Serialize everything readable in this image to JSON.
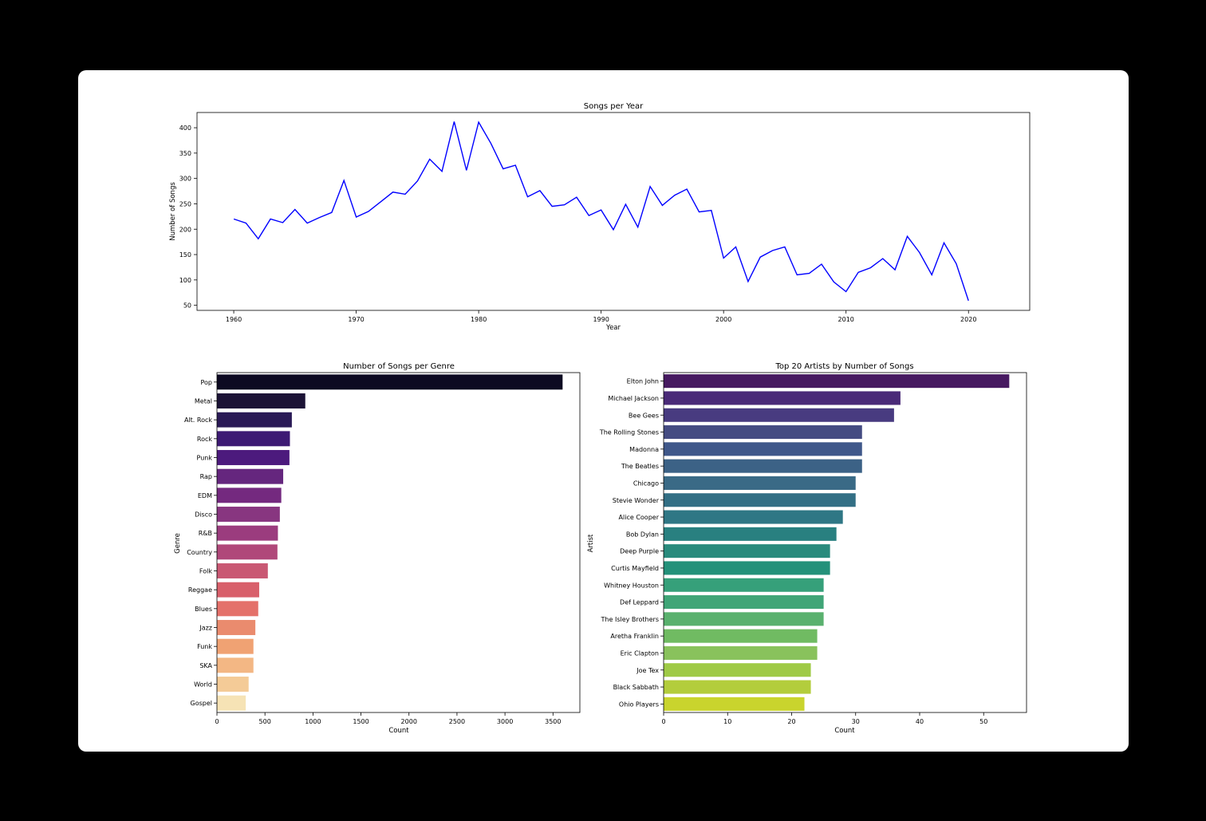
{
  "chart_data": [
    {
      "type": "line",
      "title": "Songs per Year",
      "xlabel": "Year",
      "ylabel": "Number of Songs",
      "xlim": [
        1957,
        2025
      ],
      "ylim": [
        40,
        430
      ],
      "xticks": [
        1960,
        1970,
        1980,
        1990,
        2000,
        2010,
        2020
      ],
      "yticks": [
        50,
        100,
        150,
        200,
        250,
        300,
        350,
        400
      ],
      "color": "#0000ff",
      "x": [
        1960,
        1961,
        1962,
        1963,
        1964,
        1965,
        1966,
        1967,
        1968,
        1969,
        1970,
        1971,
        1972,
        1973,
        1974,
        1975,
        1976,
        1977,
        1978,
        1979,
        1980,
        1981,
        1982,
        1983,
        1984,
        1985,
        1986,
        1987,
        1988,
        1989,
        1990,
        1991,
        1992,
        1993,
        1994,
        1995,
        1996,
        1997,
        1998,
        1999,
        2000,
        2001,
        2002,
        2003,
        2004,
        2005,
        2006,
        2007,
        2008,
        2009,
        2010,
        2011,
        2012,
        2013,
        2014,
        2015,
        2016,
        2017,
        2018,
        2019,
        2020
      ],
      "y": [
        220,
        212,
        181,
        220,
        213,
        239,
        212,
        223,
        233,
        296,
        224,
        235,
        254,
        273,
        269,
        295,
        338,
        314,
        412,
        316,
        411,
        369,
        319,
        326,
        264,
        276,
        245,
        248,
        263,
        227,
        238,
        199,
        249,
        204,
        284,
        247,
        267,
        279,
        234,
        237,
        143,
        165,
        97,
        145,
        158,
        165,
        110,
        113,
        131,
        96,
        77,
        115,
        124,
        142,
        120,
        186,
        154,
        110,
        173,
        132,
        59
      ]
    },
    {
      "type": "bar",
      "orientation": "horizontal",
      "title": "Number of Songs per Genre",
      "xlabel": "Count",
      "ylabel": "Genre",
      "xlim": [
        0,
        3780
      ],
      "xticks": [
        0,
        500,
        1000,
        1500,
        2000,
        2500,
        3000,
        3500
      ],
      "categories": [
        "Pop",
        "Metal",
        "Alt. Rock",
        "Rock",
        "Punk",
        "Rap",
        "EDM",
        "Disco",
        "R&B",
        "Country",
        "Folk",
        "Reggae",
        "Blues",
        "Jazz",
        "Funk",
        "SKA",
        "World",
        "Gospel"
      ],
      "values": [
        3600,
        920,
        780,
        760,
        755,
        690,
        670,
        655,
        635,
        630,
        530,
        440,
        430,
        400,
        380,
        380,
        330,
        300
      ],
      "colors": [
        "#0d0a22",
        "#1c1336",
        "#2a1a56",
        "#3d1a74",
        "#4c1a7d",
        "#65267e",
        "#74297f",
        "#883680",
        "#9b3c7e",
        "#b0487a",
        "#c95873",
        "#d8606b",
        "#e4716a",
        "#ea8b6e",
        "#f0a273",
        "#f3b784",
        "#f4cb97",
        "#f6e3b5"
      ]
    },
    {
      "type": "bar",
      "orientation": "horizontal",
      "title": "Top 20 Artists by Number of Songs",
      "xlabel": "Count",
      "ylabel": "Artist",
      "xlim": [
        0,
        56.7
      ],
      "xticks": [
        0,
        10,
        20,
        30,
        40,
        50
      ],
      "categories": [
        "Elton John",
        "Michael Jackson",
        "Bee Gees",
        "The Rolling Stones",
        "Madonna",
        "The Beatles",
        "Chicago",
        "Stevie Wonder",
        "Alice Cooper",
        "Bob Dylan",
        "Deep Purple",
        "Curtis Mayfield",
        "Whitney Houston",
        "Def Leppard",
        "The Isley Brothers",
        "Aretha Franklin",
        "Eric Clapton",
        "Joe Tex",
        "Black Sabbath",
        "Ohio Players"
      ],
      "values": [
        54,
        37,
        36,
        31,
        31,
        31,
        30,
        30,
        28,
        27,
        26,
        26,
        25,
        25,
        25,
        24,
        24,
        23,
        23,
        22
      ],
      "colors": [
        "#471a61",
        "#4a2a78",
        "#483b80",
        "#454c82",
        "#40588a",
        "#3c6286",
        "#3a6a86",
        "#336f85",
        "#2f7785",
        "#298080",
        "#2a8b7d",
        "#24917a",
        "#36a07a",
        "#40a577",
        "#5ab16e",
        "#70bb62",
        "#89c25c",
        "#9fca46",
        "#b3cd3c",
        "#c9d42d"
      ]
    }
  ]
}
